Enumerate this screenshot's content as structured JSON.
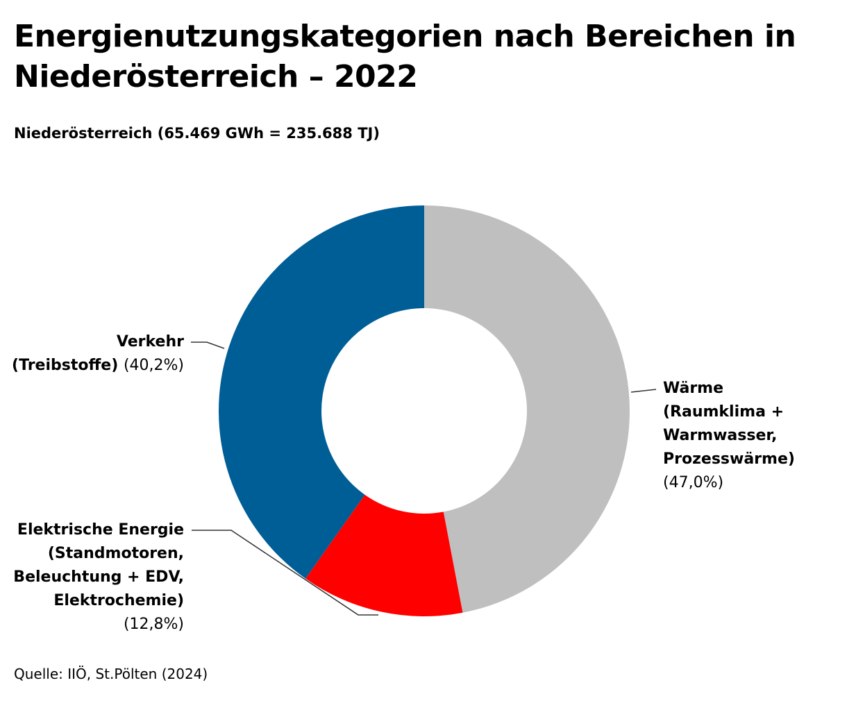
{
  "title": "Energienutzungskategorien nach Bereichen in Niederösterreich – 2022",
  "subtitle": "Niederösterreich (65.469 GWh = 235.688 TJ)",
  "source": "Quelle: IIÖ, St.Pölten (2024)",
  "colors": {
    "waerme": "#bfbfbf",
    "elektrisch": "#ff0000",
    "verkehr": "#005e97",
    "leader": "#333333"
  },
  "chart_data": {
    "type": "pie",
    "variant": "donut",
    "slices": [
      {
        "key": "waerme",
        "label": "Wärme\n(Raumklima +\nWarmwasser,\nProzesswärme)",
        "value": 47.0,
        "display": "(47,0%)"
      },
      {
        "key": "elektrisch",
        "label": "Elektrische Energie\n(Standmotoren,\nBeleuchtung + EDV,\nElektrochemie)",
        "value": 12.8,
        "display": "(12,8%)"
      },
      {
        "key": "verkehr",
        "label": "Verkehr\n(Treibstoffe)",
        "value": 40.2,
        "display": "(40,2%)"
      }
    ],
    "unit": "%"
  }
}
